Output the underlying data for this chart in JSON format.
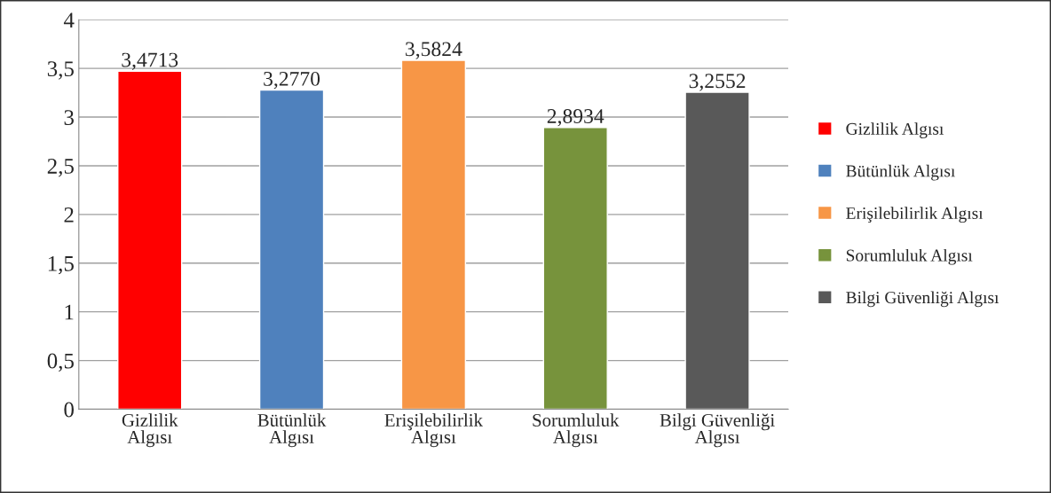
{
  "chart_data": {
    "type": "bar",
    "categories": [
      "Gizlilik Algısı",
      "Bütünlük Algısı",
      "Erişilebilirlik Algısı",
      "Sorumluluk Algısı",
      "Bilgi Güvenliği Algısı"
    ],
    "series": [
      {
        "name": "Gizlilik Algısı",
        "color": "#ff0000",
        "values": [
          3.4713,
          null,
          null,
          null,
          null
        ],
        "value_labels": [
          "3,4713",
          null,
          null,
          null,
          null
        ]
      },
      {
        "name": "Bütünlük Algısı",
        "color": "#4f81bd",
        "values": [
          null,
          3.277,
          null,
          null,
          null
        ],
        "value_labels": [
          null,
          "3,2770",
          null,
          null,
          null
        ]
      },
      {
        "name": "Erişilebilirlik Algısı",
        "color": "#f79646",
        "values": [
          null,
          null,
          3.5824,
          null,
          null
        ],
        "value_labels": [
          null,
          null,
          "3,5824",
          null,
          null
        ]
      },
      {
        "name": "Sorumluluk Algısı",
        "color": "#77933c",
        "values": [
          null,
          null,
          null,
          2.8934,
          null
        ],
        "value_labels": [
          null,
          null,
          null,
          "2,8934",
          null
        ]
      },
      {
        "name": "Bilgi Güvenliği Algısı",
        "color": "#595959",
        "values": [
          null,
          null,
          null,
          null,
          3.2552
        ],
        "value_labels": [
          null,
          null,
          null,
          null,
          "3,2552"
        ]
      }
    ],
    "stacked": true,
    "ylim": [
      0,
      4
    ],
    "yticks": [
      0,
      {
        "value": 0.5,
        "label": "0,5"
      },
      1,
      {
        "value": 1.5,
        "label": "1,5"
      },
      2,
      {
        "value": 2.5,
        "label": "2,5"
      },
      3,
      {
        "value": 3.5,
        "label": "3,5"
      },
      4
    ],
    "grid": "y",
    "legend": "right"
  }
}
